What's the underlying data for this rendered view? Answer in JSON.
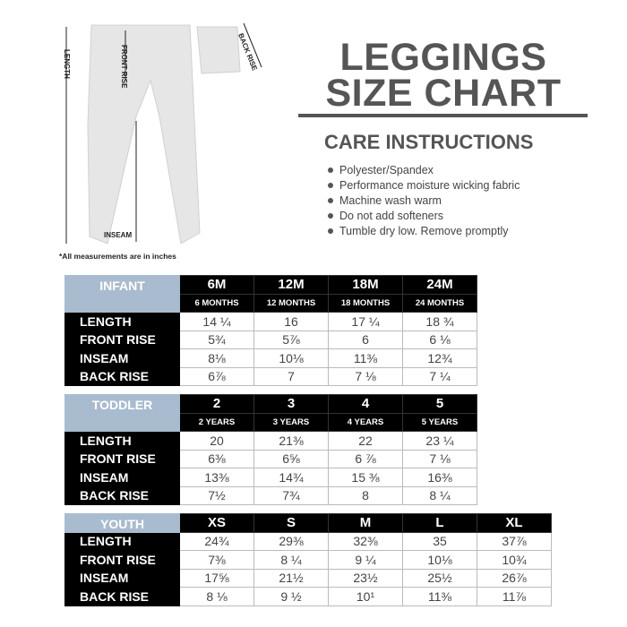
{
  "title_line1": "LEGGINGS",
  "title_line2": "SIZE CHART",
  "care_heading": "CARE INSTRUCTIONS",
  "care_items": [
    "Polyester/Spandex",
    "Performance moisture wicking fabric",
    "Machine wash warm",
    "Do not add softeners",
    "Tumble dry low. Remove promptly"
  ],
  "diagram_labels": {
    "length": "LENGTH",
    "front_rise": "FRONT RISE",
    "back_rise": "BACK RISE",
    "inseam": "INSEAM"
  },
  "note": "*All measurements are in inches",
  "colors": {
    "group_header": "#a9bccf",
    "text": "#555555"
  },
  "tables": [
    {
      "group": "INFANT",
      "sizes": [
        "6M",
        "12M",
        "18M",
        "24M"
      ],
      "subs": [
        "6 MONTHS",
        "12 MONTHS",
        "18 MONTHS",
        "24 MONTHS"
      ],
      "rows": [
        {
          "label": "LENGTH",
          "values": [
            "14 ¼",
            "16",
            "17 ¼",
            "18 ¾"
          ]
        },
        {
          "label": "FRONT RISE",
          "values": [
            "5¾",
            "5⅞",
            "6",
            "6 ⅛"
          ]
        },
        {
          "label": "INSEAM",
          "values": [
            "8⅛",
            "10⅛",
            "11⅜",
            "12¾"
          ]
        },
        {
          "label": "BACK RISE",
          "values": [
            "6⅞",
            "7",
            "7 ⅛",
            "7 ¼"
          ]
        }
      ]
    },
    {
      "group": "TODDLER",
      "sizes": [
        "2",
        "3",
        "4",
        "5"
      ],
      "subs": [
        "2 YEARS",
        "3 YEARS",
        "4 YEARS",
        "5 YEARS"
      ],
      "rows": [
        {
          "label": "LENGTH",
          "values": [
            "20",
            "21⅜",
            "22",
            "23 ¼"
          ]
        },
        {
          "label": "FRONT RISE",
          "values": [
            "6⅜",
            "6⅝",
            "6 ⅞",
            "7 ⅛"
          ]
        },
        {
          "label": "INSEAM",
          "values": [
            "13⅜",
            "14¾",
            "15 ⅜",
            "16⅜"
          ]
        },
        {
          "label": "BACK RISE",
          "values": [
            "7½",
            "7¾",
            "8",
            "8 ¼"
          ]
        }
      ]
    },
    {
      "group": "YOUTH",
      "sizes": [
        "XS",
        "S",
        "M",
        "L",
        "XL"
      ],
      "rows": [
        {
          "label": "LENGTH",
          "values": [
            "24¾",
            "29⅜",
            "32⅜",
            "35",
            "37⅞"
          ]
        },
        {
          "label": "FRONT RISE",
          "values": [
            "7⅜",
            "8 ¼",
            "9 ¼",
            "10⅛",
            "10¾"
          ]
        },
        {
          "label": "INSEAM",
          "values": [
            "17⅝",
            "21½",
            "23½",
            "25½",
            "26⅞"
          ]
        },
        {
          "label": "BACK RISE",
          "values": [
            "8 ⅛",
            "9 ½",
            "10¹",
            "11⅜",
            "11⅞"
          ]
        }
      ]
    }
  ]
}
